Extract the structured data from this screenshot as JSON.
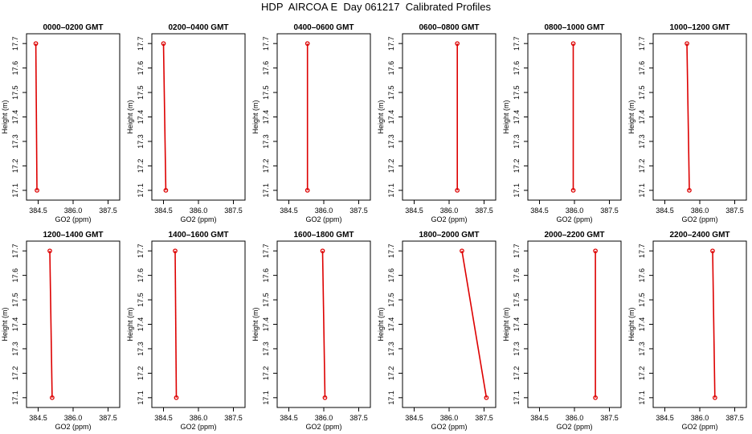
{
  "figure": {
    "title": "HDP  AIRCOA E  Day 061217  Calibrated Profiles",
    "line_color": "#dd0000"
  },
  "chart_data": [
    {
      "type": "line",
      "title": "0000–0200 GMT",
      "xlabel": "GO2 (ppm)",
      "ylabel": "Height (m)",
      "xlim": [
        384.0,
        388.0
      ],
      "ylim": [
        17.06,
        17.74
      ],
      "xticks": [
        "384.5",
        "386.0",
        "387.5"
      ],
      "yticks": [
        "17.1",
        "17.2",
        "17.3",
        "17.4",
        "17.5",
        "17.6",
        "17.7"
      ],
      "points": [
        {
          "x": 384.4,
          "y": 17.7
        },
        {
          "x": 384.45,
          "y": 17.1
        }
      ]
    },
    {
      "type": "line",
      "title": "0200–0400 GMT",
      "xlabel": "GO2 (ppm)",
      "ylabel": "Height (m)",
      "xlim": [
        384.0,
        388.0
      ],
      "ylim": [
        17.06,
        17.74
      ],
      "xticks": [
        "384.5",
        "386.0",
        "387.5"
      ],
      "yticks": [
        "17.1",
        "17.2",
        "17.3",
        "17.4",
        "17.5",
        "17.6",
        "17.7"
      ],
      "points": [
        {
          "x": 384.5,
          "y": 17.7
        },
        {
          "x": 384.6,
          "y": 17.1
        }
      ]
    },
    {
      "type": "line",
      "title": "0400–0600 GMT",
      "xlabel": "GO2 (ppm)",
      "ylabel": "Height (m)",
      "xlim": [
        384.0,
        388.0
      ],
      "ylim": [
        17.06,
        17.74
      ],
      "xticks": [
        "384.5",
        "386.0",
        "387.5"
      ],
      "yticks": [
        "17.1",
        "17.2",
        "17.3",
        "17.4",
        "17.5",
        "17.6",
        "17.7"
      ],
      "points": [
        {
          "x": 385.3,
          "y": 17.7
        },
        {
          "x": 385.3,
          "y": 17.1
        }
      ]
    },
    {
      "type": "line",
      "title": "0600–0800 GMT",
      "xlabel": "GO2 (ppm)",
      "ylabel": "Height (m)",
      "xlim": [
        384.0,
        388.0
      ],
      "ylim": [
        17.06,
        17.74
      ],
      "xticks": [
        "384.5",
        "386.0",
        "387.5"
      ],
      "yticks": [
        "17.1",
        "17.2",
        "17.3",
        "17.4",
        "17.5",
        "17.6",
        "17.7"
      ],
      "points": [
        {
          "x": 386.35,
          "y": 17.7
        },
        {
          "x": 386.35,
          "y": 17.1
        }
      ]
    },
    {
      "type": "line",
      "title": "0800–1000 GMT",
      "xlabel": "GO2 (ppm)",
      "ylabel": "Height (m)",
      "xlim": [
        384.0,
        388.0
      ],
      "ylim": [
        17.06,
        17.74
      ],
      "xticks": [
        "384.5",
        "386.0",
        "387.5"
      ],
      "yticks": [
        "17.1",
        "17.2",
        "17.3",
        "17.4",
        "17.5",
        "17.6",
        "17.7"
      ],
      "points": [
        {
          "x": 385.95,
          "y": 17.7
        },
        {
          "x": 385.95,
          "y": 17.1
        }
      ]
    },
    {
      "type": "line",
      "title": "1000–1200 GMT",
      "xlabel": "GO2 (ppm)",
      "ylabel": "Height (m)",
      "xlim": [
        384.0,
        388.0
      ],
      "ylim": [
        17.06,
        17.74
      ],
      "xticks": [
        "384.5",
        "386.0",
        "387.5"
      ],
      "yticks": [
        "17.1",
        "17.2",
        "17.3",
        "17.4",
        "17.5",
        "17.6",
        "17.7"
      ],
      "points": [
        {
          "x": 385.45,
          "y": 17.7
        },
        {
          "x": 385.55,
          "y": 17.1
        }
      ]
    },
    {
      "type": "line",
      "title": "1200–1400 GMT",
      "xlabel": "GO2 (ppm)",
      "ylabel": "Height (m)",
      "xlim": [
        384.0,
        388.0
      ],
      "ylim": [
        17.06,
        17.74
      ],
      "xticks": [
        "384.5",
        "386.0",
        "387.5"
      ],
      "yticks": [
        "17.1",
        "17.2",
        "17.3",
        "17.4",
        "17.5",
        "17.6",
        "17.7"
      ],
      "points": [
        {
          "x": 385.0,
          "y": 17.7
        },
        {
          "x": 385.1,
          "y": 17.1
        }
      ]
    },
    {
      "type": "line",
      "title": "1400–1600 GMT",
      "xlabel": "GO2 (ppm)",
      "ylabel": "Height (m)",
      "xlim": [
        384.0,
        388.0
      ],
      "ylim": [
        17.06,
        17.74
      ],
      "xticks": [
        "384.5",
        "386.0",
        "387.5"
      ],
      "yticks": [
        "17.1",
        "17.2",
        "17.3",
        "17.4",
        "17.5",
        "17.6",
        "17.7"
      ],
      "points": [
        {
          "x": 385.0,
          "y": 17.7
        },
        {
          "x": 385.05,
          "y": 17.1
        }
      ]
    },
    {
      "type": "line",
      "title": "1600–1800 GMT",
      "xlabel": "GO2 (ppm)",
      "ylabel": "Height (m)",
      "xlim": [
        384.0,
        388.0
      ],
      "ylim": [
        17.06,
        17.74
      ],
      "xticks": [
        "384.5",
        "386.0",
        "387.5"
      ],
      "yticks": [
        "17.1",
        "17.2",
        "17.3",
        "17.4",
        "17.5",
        "17.6",
        "17.7"
      ],
      "points": [
        {
          "x": 385.95,
          "y": 17.7
        },
        {
          "x": 386.05,
          "y": 17.1
        }
      ]
    },
    {
      "type": "line",
      "title": "1800–2000 GMT",
      "xlabel": "GO2 (ppm)",
      "ylabel": "Height (m)",
      "xlim": [
        384.0,
        388.0
      ],
      "ylim": [
        17.06,
        17.74
      ],
      "xticks": [
        "384.5",
        "386.0",
        "387.5"
      ],
      "yticks": [
        "17.1",
        "17.2",
        "17.3",
        "17.4",
        "17.5",
        "17.6",
        "17.7"
      ],
      "points": [
        {
          "x": 386.55,
          "y": 17.7
        },
        {
          "x": 387.6,
          "y": 17.1
        }
      ]
    },
    {
      "type": "line",
      "title": "2000–2200 GMT",
      "xlabel": "GO2 (ppm)",
      "ylabel": "Height (m)",
      "xlim": [
        384.0,
        388.0
      ],
      "ylim": [
        17.06,
        17.74
      ],
      "xticks": [
        "384.5",
        "386.0",
        "387.5"
      ],
      "yticks": [
        "17.1",
        "17.2",
        "17.3",
        "17.4",
        "17.5",
        "17.6",
        "17.7"
      ],
      "points": [
        {
          "x": 386.9,
          "y": 17.7
        },
        {
          "x": 386.9,
          "y": 17.1
        }
      ]
    },
    {
      "type": "line",
      "title": "2200–2400 GMT",
      "xlabel": "GO2 (ppm)",
      "ylabel": "Height (m)",
      "xlim": [
        384.0,
        388.0
      ],
      "ylim": [
        17.06,
        17.74
      ],
      "xticks": [
        "384.5",
        "386.0",
        "387.5"
      ],
      "yticks": [
        "17.1",
        "17.2",
        "17.3",
        "17.4",
        "17.5",
        "17.6",
        "17.7"
      ],
      "points": [
        {
          "x": 386.55,
          "y": 17.7
        },
        {
          "x": 386.65,
          "y": 17.1
        }
      ]
    }
  ]
}
